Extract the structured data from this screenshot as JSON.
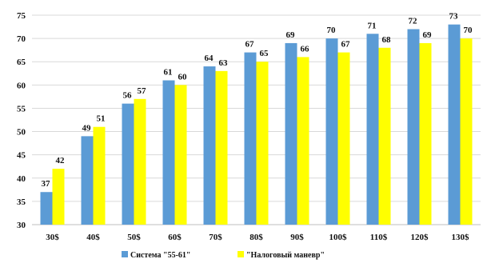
{
  "chart_data": {
    "type": "bar",
    "title": "",
    "xlabel": "",
    "ylabel": "",
    "categories": [
      "30$",
      "40$",
      "50$",
      "60$",
      "70$",
      "80$",
      "90$",
      "100$",
      "110$",
      "120$",
      "130$"
    ],
    "series": [
      {
        "name": "Система \"55-61\"",
        "color": "#5b9bd5",
        "values": [
          37,
          49,
          56,
          61,
          64,
          67,
          69,
          70,
          71,
          72,
          73
        ]
      },
      {
        "name": "\"Налоговый маневр\"",
        "color": "#ffff00",
        "values": [
          42,
          51,
          57,
          60,
          63,
          65,
          66,
          67,
          68,
          69,
          70
        ]
      }
    ],
    "ylim": [
      30,
      75
    ],
    "yticks": [
      30,
      35,
      40,
      45,
      50,
      55,
      60,
      65,
      70,
      75
    ],
    "grid": true,
    "legend_position": "bottom"
  }
}
